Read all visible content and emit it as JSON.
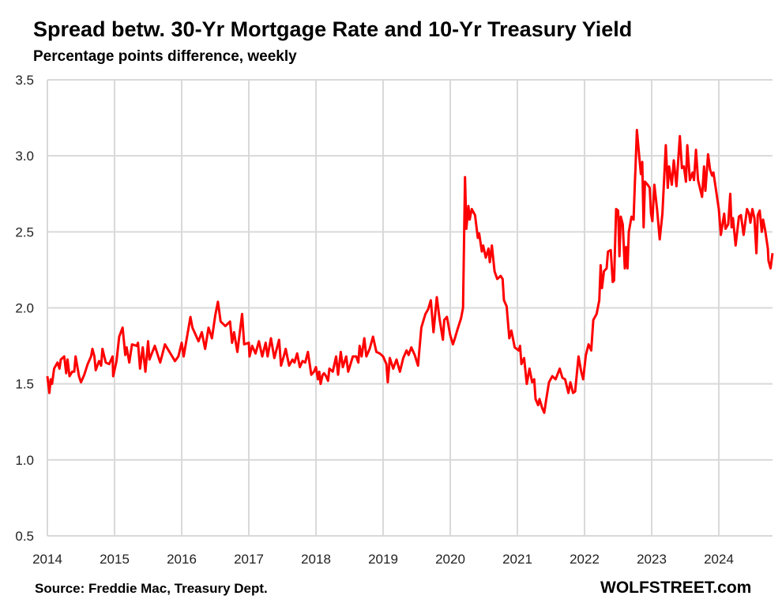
{
  "chart_data": {
    "type": "line",
    "title": "Spread betw. 30-Yr Mortgage Rate and 10-Yr Treasury Yield",
    "subtitle": "Percentage points difference, weekly",
    "source": "Source: Freddie Mac, Treasury Dept.",
    "brand": "WOLFSTREET.com",
    "xlabel": "",
    "ylabel": "",
    "xlim": [
      2014,
      2024.8
    ],
    "ylim": [
      0.5,
      3.5
    ],
    "x_ticks": [
      "2014",
      "2015",
      "2016",
      "2017",
      "2018",
      "2019",
      "2020",
      "2021",
      "2022",
      "2023",
      "2024"
    ],
    "y_ticks": [
      "0.5",
      "1.0",
      "1.5",
      "2.0",
      "2.5",
      "3.0",
      "3.5"
    ],
    "grid": true,
    "line_color": "#ff0000",
    "series": [
      {
        "name": "Spread",
        "points": [
          [
            2014.0,
            1.55
          ],
          [
            2014.03,
            1.44
          ],
          [
            2014.05,
            1.53
          ],
          [
            2014.07,
            1.5
          ],
          [
            2014.1,
            1.6
          ],
          [
            2014.15,
            1.64
          ],
          [
            2014.18,
            1.6
          ],
          [
            2014.2,
            1.66
          ],
          [
            2014.25,
            1.68
          ],
          [
            2014.28,
            1.57
          ],
          [
            2014.3,
            1.66
          ],
          [
            2014.33,
            1.55
          ],
          [
            2014.37,
            1.58
          ],
          [
            2014.4,
            1.58
          ],
          [
            2014.42,
            1.68
          ],
          [
            2014.47,
            1.55
          ],
          [
            2014.5,
            1.51
          ],
          [
            2014.55,
            1.56
          ],
          [
            2014.6,
            1.63
          ],
          [
            2014.65,
            1.68
          ],
          [
            2014.67,
            1.73
          ],
          [
            2014.7,
            1.68
          ],
          [
            2014.72,
            1.59
          ],
          [
            2014.77,
            1.65
          ],
          [
            2014.8,
            1.62
          ],
          [
            2014.82,
            1.73
          ],
          [
            2014.87,
            1.64
          ],
          [
            2014.92,
            1.63
          ],
          [
            2014.97,
            1.68
          ],
          [
            2014.98,
            1.55
          ],
          [
            2015.03,
            1.65
          ],
          [
            2015.07,
            1.81
          ],
          [
            2015.12,
            1.87
          ],
          [
            2015.16,
            1.69
          ],
          [
            2015.18,
            1.74
          ],
          [
            2015.22,
            1.64
          ],
          [
            2015.26,
            1.76
          ],
          [
            2015.33,
            1.75
          ],
          [
            2015.35,
            1.77
          ],
          [
            2015.38,
            1.6
          ],
          [
            2015.42,
            1.74
          ],
          [
            2015.46,
            1.58
          ],
          [
            2015.5,
            1.78
          ],
          [
            2015.52,
            1.66
          ],
          [
            2015.6,
            1.75
          ],
          [
            2015.68,
            1.64
          ],
          [
            2015.75,
            1.76
          ],
          [
            2015.9,
            1.65
          ],
          [
            2015.95,
            1.68
          ],
          [
            2016.0,
            1.77
          ],
          [
            2016.03,
            1.68
          ],
          [
            2016.13,
            1.94
          ],
          [
            2016.16,
            1.87
          ],
          [
            2016.25,
            1.78
          ],
          [
            2016.3,
            1.84
          ],
          [
            2016.35,
            1.73
          ],
          [
            2016.4,
            1.87
          ],
          [
            2016.45,
            1.8
          ],
          [
            2016.5,
            1.95
          ],
          [
            2016.54,
            2.04
          ],
          [
            2016.58,
            1.91
          ],
          [
            2016.65,
            1.88
          ],
          [
            2016.72,
            1.91
          ],
          [
            2016.75,
            1.77
          ],
          [
            2016.78,
            1.84
          ],
          [
            2016.83,
            1.71
          ],
          [
            2016.9,
            1.96
          ],
          [
            2016.93,
            1.76
          ],
          [
            2017.0,
            1.77
          ],
          [
            2017.01,
            1.68
          ],
          [
            2017.05,
            1.75
          ],
          [
            2017.1,
            1.7
          ],
          [
            2017.15,
            1.78
          ],
          [
            2017.2,
            1.68
          ],
          [
            2017.25,
            1.77
          ],
          [
            2017.28,
            1.68
          ],
          [
            2017.33,
            1.8
          ],
          [
            2017.38,
            1.67
          ],
          [
            2017.45,
            1.79
          ],
          [
            2017.48,
            1.62
          ],
          [
            2017.52,
            1.68
          ],
          [
            2017.55,
            1.73
          ],
          [
            2017.6,
            1.62
          ],
          [
            2017.65,
            1.66
          ],
          [
            2017.68,
            1.64
          ],
          [
            2017.72,
            1.7
          ],
          [
            2017.76,
            1.61
          ],
          [
            2017.8,
            1.65
          ],
          [
            2017.84,
            1.64
          ],
          [
            2017.88,
            1.71
          ],
          [
            2017.93,
            1.56
          ],
          [
            2017.97,
            1.58
          ],
          [
            2018.0,
            1.61
          ],
          [
            2018.03,
            1.53
          ],
          [
            2018.05,
            1.58
          ],
          [
            2018.07,
            1.5
          ],
          [
            2018.1,
            1.56
          ],
          [
            2018.12,
            1.57
          ],
          [
            2018.15,
            1.55
          ],
          [
            2018.18,
            1.52
          ],
          [
            2018.2,
            1.6
          ],
          [
            2018.25,
            1.58
          ],
          [
            2018.3,
            1.68
          ],
          [
            2018.33,
            1.56
          ],
          [
            2018.37,
            1.71
          ],
          [
            2018.4,
            1.61
          ],
          [
            2018.45,
            1.68
          ],
          [
            2018.48,
            1.58
          ],
          [
            2018.55,
            1.68
          ],
          [
            2018.6,
            1.68
          ],
          [
            2018.63,
            1.64
          ],
          [
            2018.65,
            1.75
          ],
          [
            2018.68,
            1.68
          ],
          [
            2018.72,
            1.8
          ],
          [
            2018.75,
            1.68
          ],
          [
            2018.8,
            1.73
          ],
          [
            2018.85,
            1.81
          ],
          [
            2018.9,
            1.71
          ],
          [
            2018.95,
            1.7
          ],
          [
            2019.0,
            1.68
          ],
          [
            2019.05,
            1.63
          ],
          [
            2019.07,
            1.51
          ],
          [
            2019.1,
            1.67
          ],
          [
            2019.15,
            1.6
          ],
          [
            2019.2,
            1.66
          ],
          [
            2019.25,
            1.58
          ],
          [
            2019.3,
            1.67
          ],
          [
            2019.35,
            1.72
          ],
          [
            2019.38,
            1.69
          ],
          [
            2019.42,
            1.74
          ],
          [
            2019.47,
            1.69
          ],
          [
            2019.52,
            1.62
          ],
          [
            2019.57,
            1.87
          ],
          [
            2019.63,
            1.96
          ],
          [
            2019.67,
            1.99
          ],
          [
            2019.71,
            2.05
          ],
          [
            2019.75,
            1.84
          ],
          [
            2019.8,
            2.07
          ],
          [
            2019.84,
            1.93
          ],
          [
            2019.89,
            1.79
          ],
          [
            2019.91,
            1.92
          ],
          [
            2019.95,
            1.94
          ],
          [
            2020.0,
            1.82
          ],
          [
            2020.04,
            1.76
          ],
          [
            2020.07,
            1.8
          ],
          [
            2020.11,
            1.86
          ],
          [
            2020.16,
            1.93
          ],
          [
            2020.19,
            2.0
          ],
          [
            2020.22,
            2.86
          ],
          [
            2020.24,
            2.52
          ],
          [
            2020.27,
            2.67
          ],
          [
            2020.29,
            2.58
          ],
          [
            2020.32,
            2.65
          ],
          [
            2020.37,
            2.61
          ],
          [
            2020.41,
            2.46
          ],
          [
            2020.43,
            2.49
          ],
          [
            2020.47,
            2.37
          ],
          [
            2020.49,
            2.41
          ],
          [
            2020.53,
            2.33
          ],
          [
            2020.57,
            2.39
          ],
          [
            2020.59,
            2.3
          ],
          [
            2020.62,
            2.41
          ],
          [
            2020.66,
            2.24
          ],
          [
            2020.7,
            2.19
          ],
          [
            2020.75,
            2.21
          ],
          [
            2020.78,
            2.19
          ],
          [
            2020.8,
            2.05
          ],
          [
            2020.84,
            2.01
          ],
          [
            2020.88,
            1.8
          ],
          [
            2020.91,
            1.85
          ],
          [
            2020.96,
            1.74
          ],
          [
            2021.02,
            1.72
          ],
          [
            2021.04,
            1.75
          ],
          [
            2021.06,
            1.63
          ],
          [
            2021.1,
            1.67
          ],
          [
            2021.14,
            1.5
          ],
          [
            2021.18,
            1.6
          ],
          [
            2021.22,
            1.51
          ],
          [
            2021.25,
            1.53
          ],
          [
            2021.27,
            1.4
          ],
          [
            2021.31,
            1.36
          ],
          [
            2021.33,
            1.4
          ],
          [
            2021.37,
            1.34
          ],
          [
            2021.4,
            1.31
          ],
          [
            2021.43,
            1.4
          ],
          [
            2021.47,
            1.51
          ],
          [
            2021.52,
            1.55
          ],
          [
            2021.57,
            1.53
          ],
          [
            2021.63,
            1.6
          ],
          [
            2021.67,
            1.54
          ],
          [
            2021.71,
            1.53
          ],
          [
            2021.76,
            1.44
          ],
          [
            2021.79,
            1.51
          ],
          [
            2021.83,
            1.44
          ],
          [
            2021.86,
            1.45
          ],
          [
            2021.91,
            1.68
          ],
          [
            2021.95,
            1.58
          ],
          [
            2021.98,
            1.53
          ],
          [
            2022.02,
            1.69
          ],
          [
            2022.06,
            1.76
          ],
          [
            2022.1,
            1.72
          ],
          [
            2022.13,
            1.92
          ],
          [
            2022.18,
            1.96
          ],
          [
            2022.22,
            2.05
          ],
          [
            2022.24,
            2.28
          ],
          [
            2022.26,
            2.13
          ],
          [
            2022.29,
            2.24
          ],
          [
            2022.33,
            2.26
          ],
          [
            2022.35,
            2.37
          ],
          [
            2022.39,
            2.38
          ],
          [
            2022.42,
            2.17
          ],
          [
            2022.44,
            2.18
          ],
          [
            2022.47,
            2.65
          ],
          [
            2022.5,
            2.64
          ],
          [
            2022.52,
            2.34
          ],
          [
            2022.54,
            2.6
          ],
          [
            2022.57,
            2.55
          ],
          [
            2022.6,
            2.26
          ],
          [
            2022.62,
            2.4
          ],
          [
            2022.64,
            2.26
          ],
          [
            2022.66,
            2.5
          ],
          [
            2022.7,
            2.6
          ],
          [
            2022.73,
            2.58
          ],
          [
            2022.75,
            2.83
          ],
          [
            2022.76,
            2.93
          ],
          [
            2022.78,
            3.17
          ],
          [
            2022.82,
            2.97
          ],
          [
            2022.84,
            2.88
          ],
          [
            2022.86,
            2.96
          ],
          [
            2022.88,
            2.53
          ],
          [
            2022.9,
            2.83
          ],
          [
            2022.94,
            2.81
          ],
          [
            2022.97,
            2.79
          ],
          [
            2022.99,
            2.62
          ],
          [
            2023.01,
            2.57
          ],
          [
            2023.04,
            2.81
          ],
          [
            2023.08,
            2.65
          ],
          [
            2023.12,
            2.45
          ],
          [
            2023.16,
            2.62
          ],
          [
            2023.21,
            3.07
          ],
          [
            2023.24,
            2.79
          ],
          [
            2023.26,
            2.93
          ],
          [
            2023.3,
            2.81
          ],
          [
            2023.33,
            2.97
          ],
          [
            2023.37,
            2.8
          ],
          [
            2023.42,
            3.13
          ],
          [
            2023.45,
            2.92
          ],
          [
            2023.48,
            2.93
          ],
          [
            2023.51,
            2.83
          ],
          [
            2023.53,
            3.07
          ],
          [
            2023.57,
            2.84
          ],
          [
            2023.61,
            2.89
          ],
          [
            2023.63,
            2.84
          ],
          [
            2023.66,
            3.04
          ],
          [
            2023.69,
            2.84
          ],
          [
            2023.75,
            2.73
          ],
          [
            2023.78,
            2.93
          ],
          [
            2023.8,
            2.77
          ],
          [
            2023.84,
            3.01
          ],
          [
            2023.87,
            2.91
          ],
          [
            2023.9,
            2.87
          ],
          [
            2023.92,
            2.89
          ],
          [
            2023.96,
            2.77
          ],
          [
            2024.0,
            2.65
          ],
          [
            2024.03,
            2.48
          ],
          [
            2024.08,
            2.62
          ],
          [
            2024.1,
            2.52
          ],
          [
            2024.14,
            2.55
          ],
          [
            2024.17,
            2.75
          ],
          [
            2024.19,
            2.53
          ],
          [
            2024.21,
            2.59
          ],
          [
            2024.25,
            2.41
          ],
          [
            2024.3,
            2.6
          ],
          [
            2024.33,
            2.61
          ],
          [
            2024.37,
            2.48
          ],
          [
            2024.42,
            2.65
          ],
          [
            2024.45,
            2.62
          ],
          [
            2024.47,
            2.56
          ],
          [
            2024.5,
            2.65
          ],
          [
            2024.53,
            2.59
          ],
          [
            2024.56,
            2.36
          ],
          [
            2024.58,
            2.61
          ],
          [
            2024.61,
            2.64
          ],
          [
            2024.64,
            2.5
          ],
          [
            2024.66,
            2.58
          ],
          [
            2024.69,
            2.51
          ],
          [
            2024.73,
            2.39
          ],
          [
            2024.74,
            2.31
          ],
          [
            2024.77,
            2.26
          ],
          [
            2024.8,
            2.36
          ]
        ]
      }
    ]
  }
}
